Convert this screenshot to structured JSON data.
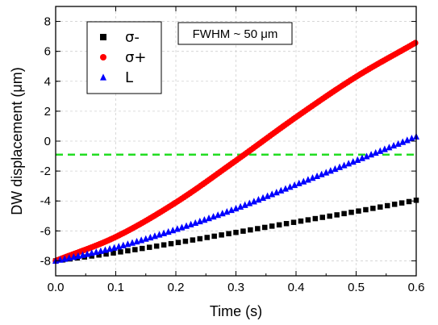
{
  "chart_data": {
    "type": "scatter",
    "title": "",
    "xlabel": "Time (s)",
    "ylabel": "DW displacement (μm)",
    "xlim": [
      0.0,
      0.6
    ],
    "ylim": [
      -9,
      9
    ],
    "x_ticks": [
      "0.0",
      "0.1",
      "0.2",
      "0.3",
      "0.4",
      "0.5",
      "0.6"
    ],
    "y_ticks": [
      "-8",
      "-6",
      "-4",
      "-2",
      "0",
      "2",
      "4",
      "6",
      "8"
    ],
    "grid": true,
    "legend_position": "top-left",
    "series": [
      {
        "name": "σ-",
        "marker": "square",
        "color": "#000000",
        "x": [
          0.0,
          0.1,
          0.2,
          0.3,
          0.4,
          0.5,
          0.6
        ],
        "y": [
          -8.0,
          -7.45,
          -6.8,
          -6.1,
          -5.4,
          -4.7,
          -3.95
        ]
      },
      {
        "name": "σ+",
        "marker": "circle",
        "color": "#ff0000",
        "x": [
          0.0,
          0.1,
          0.2,
          0.3,
          0.4,
          0.5,
          0.6
        ],
        "y": [
          -8.0,
          -6.4,
          -4.1,
          -1.3,
          1.6,
          4.3,
          6.6
        ]
      },
      {
        "name": "L",
        "marker": "triangle",
        "color": "#0000ff",
        "x": [
          0.0,
          0.1,
          0.2,
          0.3,
          0.4,
          0.5,
          0.6
        ],
        "y": [
          -8.0,
          -7.1,
          -5.9,
          -4.5,
          -2.9,
          -1.3,
          0.3
        ]
      }
    ],
    "reference_line": {
      "y": -0.9,
      "color": "#22dd22",
      "style": "dashed"
    },
    "annotation": "FWHM ~ 50 μm"
  }
}
